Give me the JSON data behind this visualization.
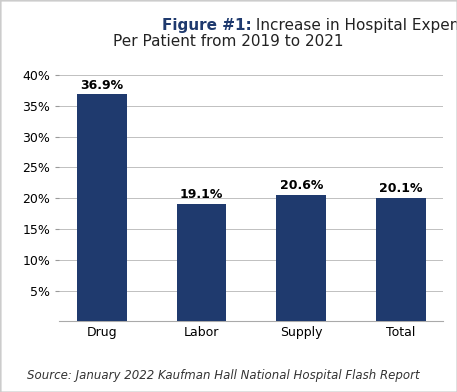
{
  "title_bold": "Figure #1:",
  "title_normal_line1": " Increase in Hospital Expenses",
  "title_normal_line2": "Per Patient from 2019 to 2021",
  "categories": [
    "Drug",
    "Labor",
    "Supply",
    "Total"
  ],
  "values": [
    36.9,
    19.1,
    20.6,
    20.1
  ],
  "labels": [
    "36.9%",
    "19.1%",
    "20.6%",
    "20.1%"
  ],
  "bar_color": "#1f3a6e",
  "title_bold_color": "#1f3a6e",
  "title_normal_color": "#222222",
  "background_color": "#ffffff",
  "plot_bg_color": "#ffffff",
  "ylim": [
    0,
    42
  ],
  "yticks": [
    5,
    10,
    15,
    20,
    25,
    30,
    35,
    40
  ],
  "source_text": "Source: January 2022 Kaufman Hall National Hospital Flash Report",
  "label_fontsize": 9,
  "tick_fontsize": 9,
  "title_fontsize": 11,
  "source_fontsize": 8.5,
  "bar_width": 0.5,
  "grid_color": "#c0c0c0",
  "border_color": "#cccccc"
}
